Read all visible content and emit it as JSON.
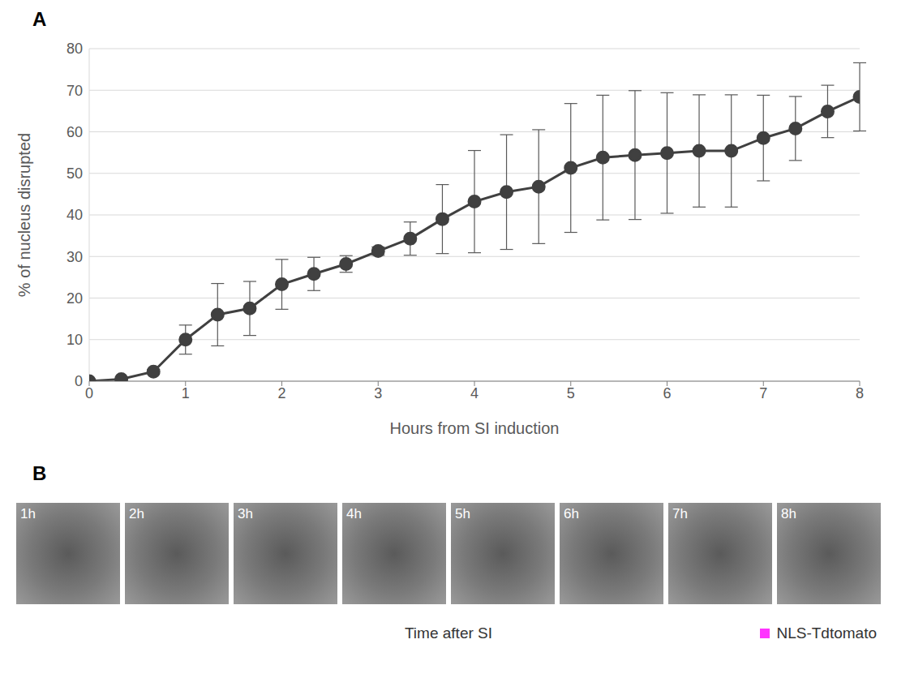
{
  "chart_data": {
    "type": "line",
    "x_label": "Hours from SI induction",
    "y_label": "% of nucleus disrupted",
    "x": [
      0,
      0.333,
      0.667,
      1,
      1.333,
      1.667,
      2,
      2.333,
      2.667,
      3,
      3.333,
      3.667,
      4,
      4.333,
      4.667,
      5,
      5.333,
      5.667,
      6,
      6.333,
      6.667,
      7,
      7.333,
      7.667,
      8
    ],
    "values": [
      0,
      0.5,
      2.3,
      10,
      16,
      17.5,
      23.3,
      25.8,
      28.2,
      31.3,
      34.3,
      39,
      43.2,
      45.5,
      46.8,
      51.3,
      53.8,
      54.4,
      54.9,
      55.4,
      55.4,
      58.5,
      60.8,
      64.9,
      68.4
    ],
    "errors": [
      0,
      0,
      0.5,
      3.5,
      7.5,
      6.5,
      6,
      4,
      2,
      1,
      4,
      8.3,
      12.3,
      13.8,
      13.7,
      15.5,
      15,
      15.5,
      14.5,
      13.5,
      13.5,
      10.3,
      7.7,
      6.3,
      8.2
    ],
    "color": "#404040",
    "marker": "circle",
    "xlim": [
      0,
      8
    ],
    "xticks": [
      0,
      1,
      2,
      3,
      4,
      5,
      6,
      7,
      8
    ],
    "ylim": [
      0,
      80
    ],
    "yticks": [
      0,
      10,
      20,
      30,
      40,
      50,
      60,
      70,
      80
    ],
    "grid": true
  },
  "panel_labels": [
    "A",
    "B"
  ],
  "image_panel": {
    "frames": [
      "1h",
      "2h",
      "3h",
      "4h",
      "5h",
      "6h",
      "7h",
      "8h"
    ],
    "caption": "Time after SI",
    "legend": {
      "label": "NLS-Tdtomato",
      "color": "#ff33ff"
    }
  }
}
